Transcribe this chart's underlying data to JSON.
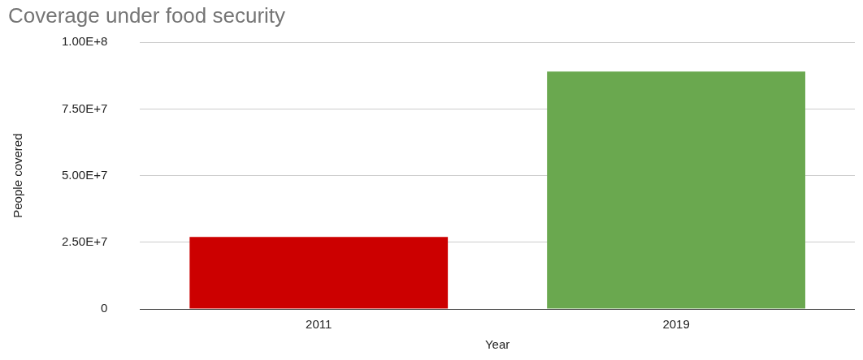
{
  "chart_data": {
    "type": "bar",
    "title": "Coverage under food security",
    "xlabel": "Year",
    "ylabel": "People covered",
    "categories": [
      "2011",
      "2019"
    ],
    "values": [
      27000000,
      89000000
    ],
    "colors": [
      "#cc0000",
      "#6aa84f"
    ],
    "ylim": [
      0,
      100000000
    ],
    "yticks": [
      {
        "value": 0,
        "label": "0"
      },
      {
        "value": 25000000,
        "label": "2.50E+7"
      },
      {
        "value": 50000000,
        "label": "5.00E+7"
      },
      {
        "value": 75000000,
        "label": "7.50E+7"
      },
      {
        "value": 100000000,
        "label": "1.00E+8"
      }
    ],
    "grid": "y",
    "legend": false
  }
}
